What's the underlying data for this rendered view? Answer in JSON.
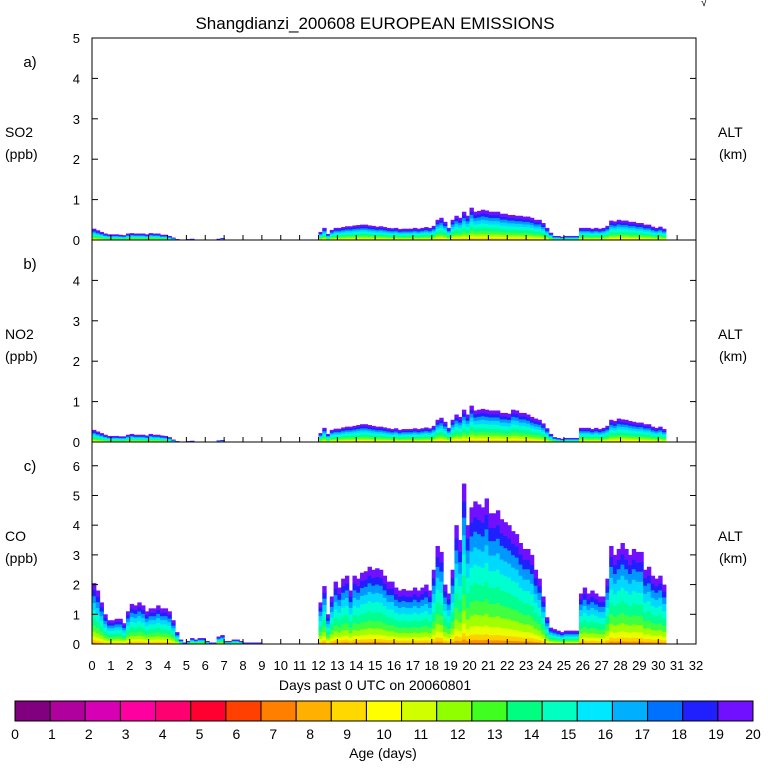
{
  "figure": {
    "title": "Shangdianzi_200608 EUROPEAN EMISSIONS",
    "corner_mark": "√"
  },
  "chart_data": [
    {
      "type": "area",
      "stacked": true,
      "panel_label": "a)",
      "ylabel": "SO2",
      "yunit": "(ppb)",
      "right_label": "ALT",
      "right_unit": "(km)",
      "ylim": [
        0,
        5
      ],
      "yticks": [
        "0",
        "1",
        "2",
        "3",
        "4",
        "5"
      ],
      "x": [
        0.1,
        0.3,
        0.5,
        0.7,
        0.9,
        1.1,
        1.3,
        1.5,
        1.7,
        1.9,
        2.1,
        2.3,
        2.5,
        2.7,
        2.9,
        3.1,
        3.3,
        3.5,
        3.7,
        3.9,
        4.1,
        4.3,
        4.5,
        4.7,
        4.9,
        5.1,
        5.3,
        5.5,
        5.7,
        5.9,
        6.1,
        6.3,
        6.5,
        6.7,
        6.9,
        7.1,
        7.3,
        7.5,
        7.7,
        7.9,
        8.1,
        8.3,
        8.5,
        8.7,
        8.9,
        9.1,
        9.3,
        9.5,
        9.7,
        9.9,
        10.1,
        10.3,
        10.5,
        10.7,
        10.9,
        11.1,
        11.3,
        11.5,
        11.7,
        11.9,
        12.1,
        12.3,
        12.5,
        12.7,
        12.9,
        13.1,
        13.3,
        13.5,
        13.7,
        13.9,
        14.1,
        14.3,
        14.5,
        14.7,
        14.9,
        15.1,
        15.3,
        15.5,
        15.7,
        15.9,
        16.1,
        16.3,
        16.5,
        16.7,
        16.9,
        17.1,
        17.3,
        17.5,
        17.7,
        17.9,
        18.1,
        18.3,
        18.5,
        18.7,
        18.9,
        19.1,
        19.3,
        19.5,
        19.7,
        19.9,
        20.1,
        20.3,
        20.5,
        20.7,
        20.9,
        21.1,
        21.3,
        21.5,
        21.7,
        21.9,
        22.1,
        22.3,
        22.5,
        22.7,
        22.9,
        23.1,
        23.3,
        23.5,
        23.7,
        23.9,
        24.1,
        24.3,
        24.5,
        24.7,
        24.9,
        25.1,
        25.3,
        25.5,
        25.7,
        25.9,
        26.1,
        26.3,
        26.5,
        26.7,
        26.9,
        27.1,
        27.3,
        27.5,
        27.7,
        27.9,
        28.1,
        28.3,
        28.5,
        28.7,
        28.9,
        29.1,
        29.3,
        29.5,
        29.7,
        29.9,
        30.1,
        30.3,
        30.5,
        30.7,
        30.9,
        31.1
      ],
      "total": [
        0.28,
        0.24,
        0.2,
        0.16,
        0.14,
        0.14,
        0.14,
        0.13,
        0.12,
        0.16,
        0.17,
        0.16,
        0.16,
        0.16,
        0.14,
        0.17,
        0.16,
        0.16,
        0.13,
        0.13,
        0.1,
        0.06,
        0.02,
        0.0,
        0.0,
        0.02,
        0.03,
        0.0,
        0.0,
        0.0,
        0.01,
        0.0,
        0.0,
        0.03,
        0.05,
        0.0,
        0.0,
        0.0,
        0.0,
        0.0,
        0.0,
        0.0,
        0.0,
        0.0,
        0.0,
        0.0,
        0.0,
        0.0,
        0.0,
        0.0,
        0.0,
        0.0,
        0.0,
        0.0,
        0.0,
        0.0,
        0.0,
        0.0,
        0.0,
        0.0,
        0.2,
        0.3,
        0.15,
        0.25,
        0.3,
        0.3,
        0.32,
        0.34,
        0.34,
        0.36,
        0.37,
        0.38,
        0.38,
        0.36,
        0.35,
        0.33,
        0.34,
        0.32,
        0.3,
        0.29,
        0.3,
        0.27,
        0.28,
        0.28,
        0.28,
        0.3,
        0.28,
        0.3,
        0.32,
        0.3,
        0.35,
        0.5,
        0.55,
        0.45,
        0.3,
        0.5,
        0.6,
        0.55,
        0.7,
        0.6,
        0.8,
        0.7,
        0.72,
        0.75,
        0.73,
        0.7,
        0.7,
        0.7,
        0.65,
        0.65,
        0.62,
        0.62,
        0.6,
        0.6,
        0.58,
        0.58,
        0.55,
        0.5,
        0.5,
        0.42,
        0.3,
        0.18,
        0.1,
        0.1,
        0.08,
        0.1,
        0.1,
        0.1,
        0.1,
        0.3,
        0.3,
        0.3,
        0.28,
        0.3,
        0.28,
        0.3,
        0.35,
        0.48,
        0.46,
        0.5,
        0.48,
        0.48,
        0.45,
        0.45,
        0.42,
        0.42,
        0.38,
        0.38,
        0.33,
        0.3,
        0.33,
        0.28
      ]
    },
    {
      "type": "area",
      "stacked": true,
      "panel_label": "b)",
      "ylabel": "NO2",
      "yunit": "(ppb)",
      "right_label": "ALT",
      "right_unit": "(km)",
      "ylim": [
        0,
        5
      ],
      "yticks": [
        "0",
        "1",
        "2",
        "3",
        "4"
      ],
      "x": [
        0.1,
        0.3,
        0.5,
        0.7,
        0.9,
        1.1,
        1.3,
        1.5,
        1.7,
        1.9,
        2.1,
        2.3,
        2.5,
        2.7,
        2.9,
        3.1,
        3.3,
        3.5,
        3.7,
        3.9,
        4.1,
        4.3,
        4.5,
        4.7,
        4.9,
        5.1,
        5.3,
        5.5,
        5.7,
        5.9,
        6.1,
        6.3,
        6.5,
        6.7,
        6.9,
        7.1,
        7.3,
        7.5,
        7.7,
        7.9,
        8.1,
        8.3,
        8.5,
        8.7,
        8.9,
        9.1,
        9.3,
        9.5,
        9.7,
        9.9,
        10.1,
        10.3,
        10.5,
        10.7,
        10.9,
        11.1,
        11.3,
        11.5,
        11.7,
        11.9,
        12.1,
        12.3,
        12.5,
        12.7,
        12.9,
        13.1,
        13.3,
        13.5,
        13.7,
        13.9,
        14.1,
        14.3,
        14.5,
        14.7,
        14.9,
        15.1,
        15.3,
        15.5,
        15.7,
        15.9,
        16.1,
        16.3,
        16.5,
        16.7,
        16.9,
        17.1,
        17.3,
        17.5,
        17.7,
        17.9,
        18.1,
        18.3,
        18.5,
        18.7,
        18.9,
        19.1,
        19.3,
        19.5,
        19.7,
        19.9,
        20.1,
        20.3,
        20.5,
        20.7,
        20.9,
        21.1,
        21.3,
        21.5,
        21.7,
        21.9,
        22.1,
        22.3,
        22.5,
        22.7,
        22.9,
        23.1,
        23.3,
        23.5,
        23.7,
        23.9,
        24.1,
        24.3,
        24.5,
        24.7,
        24.9,
        25.1,
        25.3,
        25.5,
        25.7,
        25.9,
        26.1,
        26.3,
        26.5,
        26.7,
        26.9,
        27.1,
        27.3,
        27.5,
        27.7,
        27.9,
        28.1,
        28.3,
        28.5,
        28.7,
        28.9,
        29.1,
        29.3,
        29.5,
        29.7,
        29.9,
        30.1,
        30.3,
        30.5,
        30.7,
        30.9,
        31.1
      ],
      "total": [
        0.3,
        0.26,
        0.22,
        0.18,
        0.15,
        0.15,
        0.15,
        0.14,
        0.14,
        0.18,
        0.2,
        0.18,
        0.18,
        0.18,
        0.16,
        0.2,
        0.18,
        0.18,
        0.16,
        0.15,
        0.12,
        0.06,
        0.02,
        0.0,
        0.0,
        0.02,
        0.03,
        0.0,
        0.0,
        0.0,
        0.01,
        0.0,
        0.0,
        0.04,
        0.05,
        0.0,
        0.0,
        0.0,
        0.0,
        0.0,
        0.0,
        0.0,
        0.0,
        0.0,
        0.0,
        0.0,
        0.0,
        0.0,
        0.0,
        0.0,
        0.0,
        0.0,
        0.0,
        0.0,
        0.0,
        0.0,
        0.0,
        0.0,
        0.0,
        0.0,
        0.22,
        0.35,
        0.2,
        0.3,
        0.33,
        0.33,
        0.36,
        0.38,
        0.38,
        0.4,
        0.42,
        0.44,
        0.44,
        0.42,
        0.4,
        0.38,
        0.38,
        0.36,
        0.34,
        0.32,
        0.34,
        0.3,
        0.32,
        0.32,
        0.32,
        0.34,
        0.32,
        0.34,
        0.36,
        0.34,
        0.4,
        0.55,
        0.6,
        0.5,
        0.35,
        0.55,
        0.68,
        0.62,
        0.8,
        0.68,
        0.9,
        0.78,
        0.8,
        0.82,
        0.8,
        0.78,
        0.78,
        0.78,
        0.72,
        0.72,
        0.7,
        0.8,
        0.78,
        0.72,
        0.72,
        0.68,
        0.62,
        0.58,
        0.55,
        0.46,
        0.34,
        0.2,
        0.12,
        0.1,
        0.08,
        0.1,
        0.1,
        0.1,
        0.1,
        0.35,
        0.35,
        0.35,
        0.32,
        0.35,
        0.32,
        0.35,
        0.4,
        0.55,
        0.52,
        0.58,
        0.56,
        0.55,
        0.52,
        0.5,
        0.48,
        0.48,
        0.44,
        0.44,
        0.38,
        0.35,
        0.38,
        0.32
      ]
    },
    {
      "type": "area",
      "stacked": true,
      "panel_label": "c)",
      "ylabel": "CO",
      "yunit": "(ppb)",
      "right_label": "ALT",
      "right_unit": "(km)",
      "ylim": [
        0,
        6.8
      ],
      "yticks": [
        "0",
        "1",
        "2",
        "3",
        "4",
        "5",
        "6"
      ],
      "x": [
        0.1,
        0.3,
        0.5,
        0.7,
        0.9,
        1.1,
        1.3,
        1.5,
        1.7,
        1.9,
        2.1,
        2.3,
        2.5,
        2.7,
        2.9,
        3.1,
        3.3,
        3.5,
        3.7,
        3.9,
        4.1,
        4.3,
        4.5,
        4.7,
        4.9,
        5.1,
        5.3,
        5.5,
        5.7,
        5.9,
        6.1,
        6.3,
        6.5,
        6.7,
        6.9,
        7.1,
        7.3,
        7.5,
        7.7,
        7.9,
        8.1,
        8.3,
        8.5,
        8.7,
        8.9,
        9.1,
        9.3,
        9.5,
        9.7,
        9.9,
        10.1,
        10.3,
        10.5,
        10.7,
        10.9,
        11.1,
        11.3,
        11.5,
        11.7,
        11.9,
        12.1,
        12.3,
        12.5,
        12.7,
        12.9,
        13.1,
        13.3,
        13.5,
        13.7,
        13.9,
        14.1,
        14.3,
        14.5,
        14.7,
        14.9,
        15.1,
        15.3,
        15.5,
        15.7,
        15.9,
        16.1,
        16.3,
        16.5,
        16.7,
        16.9,
        17.1,
        17.3,
        17.5,
        17.7,
        17.9,
        18.1,
        18.3,
        18.5,
        18.7,
        18.9,
        19.1,
        19.3,
        19.5,
        19.7,
        19.9,
        20.1,
        20.3,
        20.5,
        20.7,
        20.9,
        21.1,
        21.3,
        21.5,
        21.7,
        21.9,
        22.1,
        22.3,
        22.5,
        22.7,
        22.9,
        23.1,
        23.3,
        23.5,
        23.7,
        23.9,
        24.1,
        24.3,
        24.5,
        24.7,
        24.9,
        25.1,
        25.3,
        25.5,
        25.7,
        25.9,
        26.1,
        26.3,
        26.5,
        26.7,
        26.9,
        27.1,
        27.3,
        27.5,
        27.7,
        27.9,
        28.1,
        28.3,
        28.5,
        28.7,
        28.9,
        29.1,
        29.3,
        29.5,
        29.7,
        29.9,
        30.1,
        30.3,
        30.5,
        30.7,
        30.9,
        31.1
      ],
      "total": [
        2.05,
        1.8,
        1.4,
        1.0,
        0.8,
        0.8,
        0.85,
        0.85,
        0.7,
        1.1,
        1.35,
        1.3,
        1.4,
        1.3,
        1.1,
        1.2,
        1.2,
        1.3,
        1.2,
        1.2,
        1.1,
        0.8,
        0.4,
        0.15,
        0.05,
        0.1,
        0.2,
        0.15,
        0.2,
        0.2,
        0.1,
        0.05,
        0.05,
        0.25,
        0.3,
        0.1,
        0.1,
        0.15,
        0.15,
        0.1,
        0.05,
        0.05,
        0.05,
        0.05,
        0.05,
        0.0,
        0.0,
        0.0,
        0.0,
        0.0,
        0.0,
        0.0,
        0.0,
        0.0,
        0.0,
        0.0,
        0.0,
        0.0,
        0.0,
        0.0,
        1.4,
        1.95,
        1.0,
        1.6,
        2.1,
        1.9,
        2.2,
        2.3,
        1.8,
        2.3,
        2.2,
        2.4,
        2.45,
        2.6,
        2.5,
        2.55,
        2.5,
        2.3,
        2.1,
        2.1,
        1.9,
        1.8,
        1.85,
        1.8,
        1.8,
        1.9,
        1.8,
        1.9,
        2.0,
        1.8,
        2.5,
        3.3,
        3.1,
        2.0,
        1.7,
        2.5,
        4.0,
        3.5,
        5.4,
        4.0,
        4.6,
        4.8,
        4.7,
        4.6,
        4.9,
        4.4,
        4.4,
        4.5,
        4.2,
        4.1,
        4.0,
        3.8,
        3.7,
        3.4,
        3.2,
        3.2,
        3.0,
        2.5,
        2.2,
        1.6,
        0.9,
        0.55,
        0.5,
        0.45,
        0.4,
        0.45,
        0.45,
        0.45,
        0.45,
        1.7,
        1.9,
        1.7,
        1.8,
        1.7,
        1.6,
        1.6,
        2.2,
        3.3,
        3.0,
        3.2,
        3.4,
        3.2,
        3.0,
        3.2,
        3.1,
        3.1,
        2.5,
        2.6,
        2.3,
        2.2,
        2.3,
        2.0
      ]
    }
  ],
  "x_axis": {
    "label": "Days past 0 UTC on 20060801",
    "xlim": [
      0,
      32
    ],
    "ticks": [
      "0",
      "1",
      "2",
      "3",
      "4",
      "5",
      "6",
      "7",
      "8",
      "9",
      "10",
      "11",
      "12",
      "13",
      "14",
      "15",
      "16",
      "17",
      "18",
      "19",
      "20",
      "21",
      "22",
      "23",
      "24",
      "25",
      "26",
      "27",
      "28",
      "29",
      "30",
      "31",
      "32"
    ]
  },
  "colorbar": {
    "label": "Age (days)",
    "ticks": [
      "0",
      "1",
      "2",
      "3",
      "4",
      "5",
      "6",
      "7",
      "8",
      "9",
      "10",
      "11",
      "12",
      "13",
      "14",
      "15",
      "16",
      "17",
      "18",
      "19",
      "20"
    ],
    "colors": [
      "#800080",
      "#b0009e",
      "#d800b4",
      "#ff00a0",
      "#ff0070",
      "#ff0030",
      "#ff4000",
      "#ff8000",
      "#ffb000",
      "#ffd800",
      "#ffff00",
      "#d0ff00",
      "#90ff00",
      "#40ff20",
      "#00ff80",
      "#00ffc0",
      "#00e8ff",
      "#00b0ff",
      "#0070ff",
      "#2020ff",
      "#7010ff"
    ]
  }
}
